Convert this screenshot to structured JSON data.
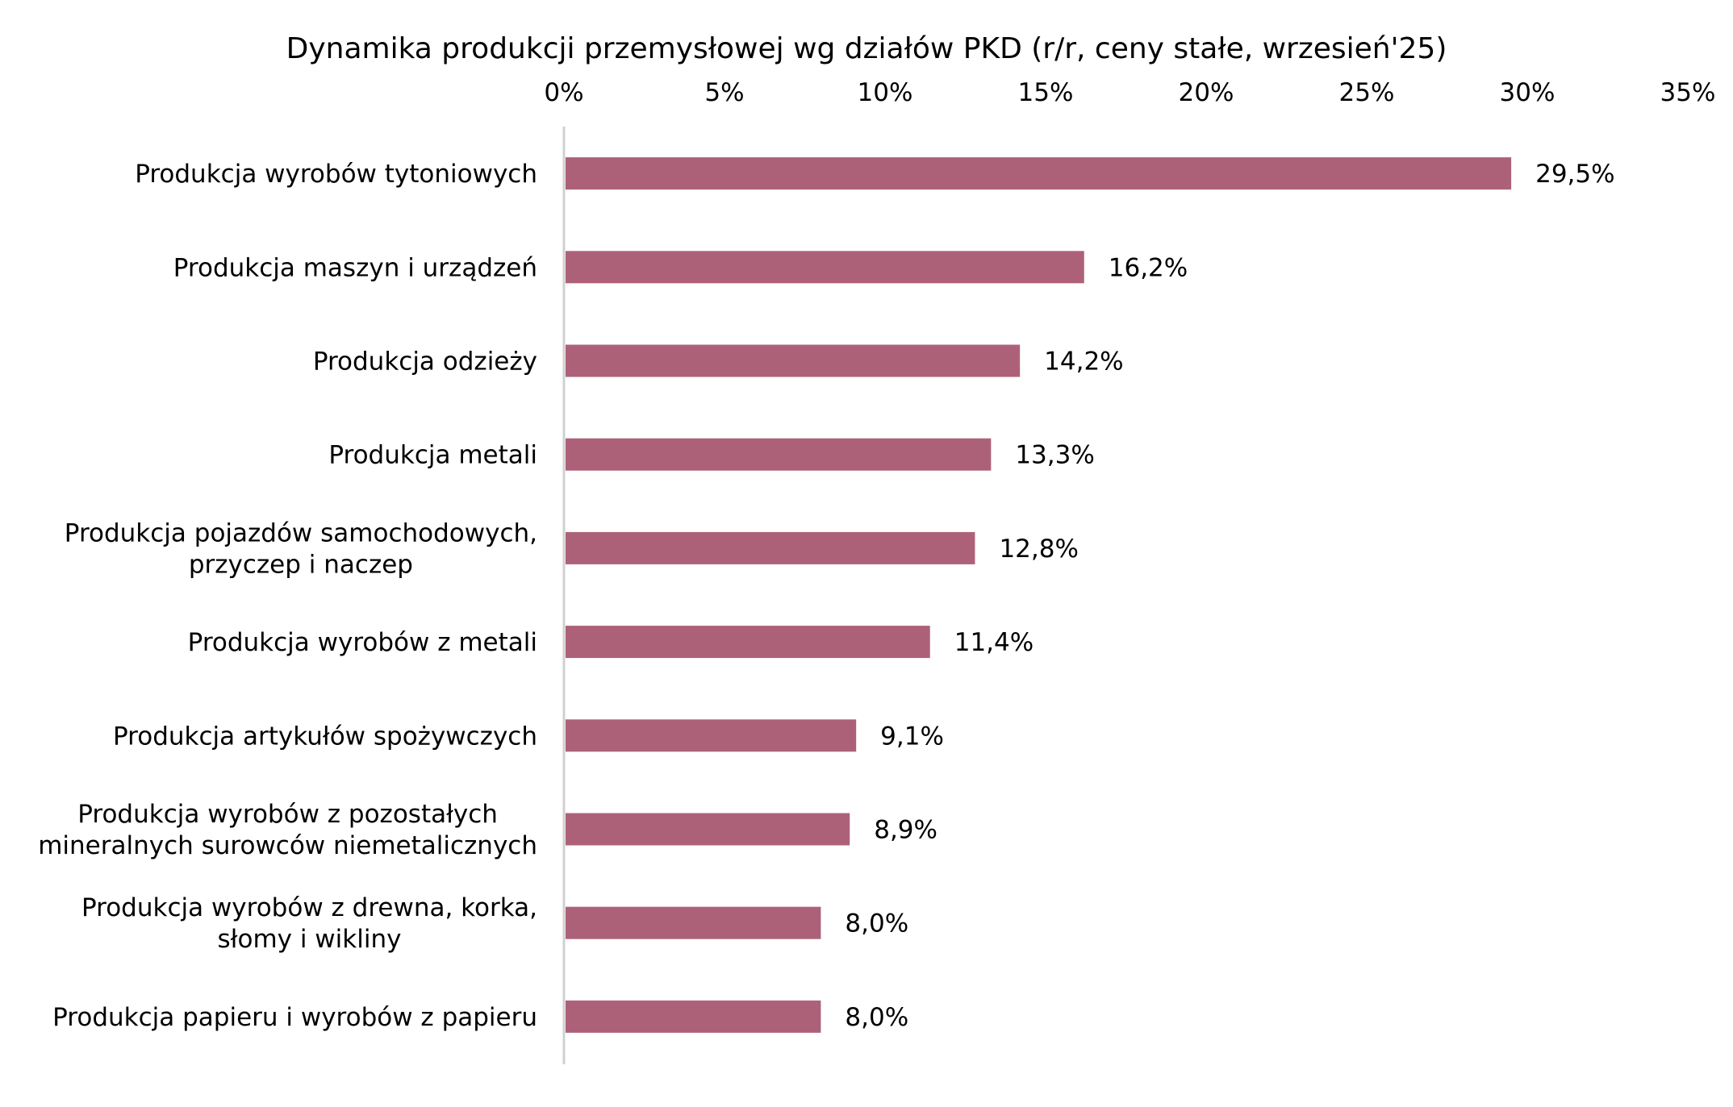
{
  "chart_data": {
    "type": "bar",
    "orientation": "horizontal",
    "title": "Dynamika produkcji przemysłowej wg działów PKD (r/r, ceny stałe, wrzesień'25)",
    "xlim": [
      0,
      35
    ],
    "ticks": [
      "0%",
      "5%",
      "10%",
      "15%",
      "20%",
      "25%",
      "30%",
      "35%"
    ],
    "tick_values": [
      0,
      5,
      10,
      15,
      20,
      25,
      30,
      35
    ],
    "tick_position": "top",
    "grid": false,
    "bar_color": "#ad6179",
    "axis_color": "#d0d0d0",
    "categories": [
      [
        "Produkcja wyrobów tytoniowych"
      ],
      [
        "Produkcja maszyn i urządzeń"
      ],
      [
        "Produkcja odzieży"
      ],
      [
        "Produkcja metali"
      ],
      [
        "Produkcja pojazdów samochodowych,",
        "przyczep i naczep"
      ],
      [
        "Produkcja wyrobów z metali"
      ],
      [
        "Produkcja artykułów spożywczych"
      ],
      [
        "Produkcja wyrobów z pozostałych",
        "mineralnych surowców niemetalicznych"
      ],
      [
        "Produkcja wyrobów z drewna, korka,",
        "słomy i wikliny"
      ],
      [
        "Produkcja papieru i wyrobów z papieru"
      ]
    ],
    "values": [
      29.5,
      16.2,
      14.2,
      13.3,
      12.8,
      11.4,
      9.1,
      8.9,
      8.0,
      8.0
    ],
    "value_labels": [
      "29,5%",
      "16,2%",
      "14,2%",
      "13,3%",
      "12,8%",
      "11,4%",
      "9,1%",
      "8,9%",
      "8,0%",
      "8,0%"
    ]
  }
}
